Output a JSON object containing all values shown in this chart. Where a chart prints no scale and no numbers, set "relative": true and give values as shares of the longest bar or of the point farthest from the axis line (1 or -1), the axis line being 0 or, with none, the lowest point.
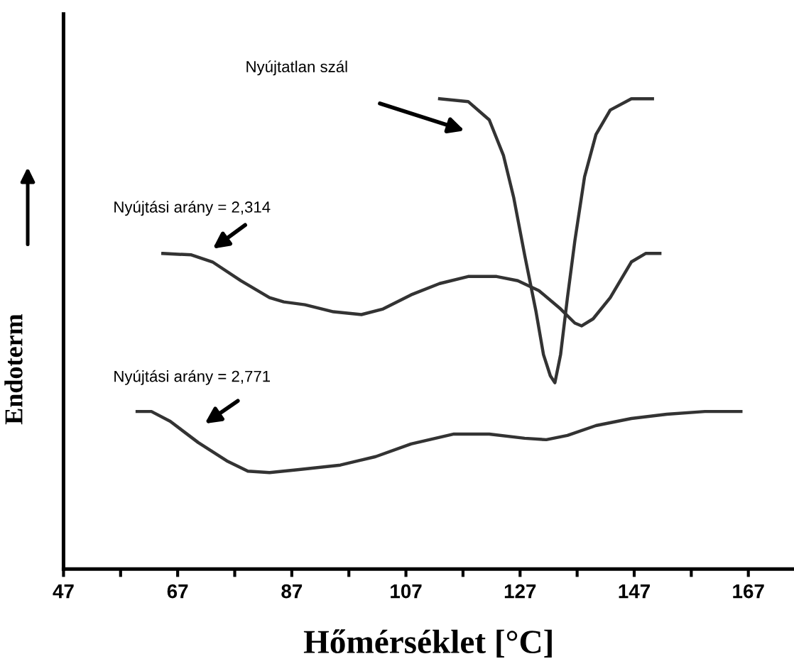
{
  "chart_data": {
    "type": "line",
    "relative": true,
    "xlabel": "Hőmérséklet [°C]",
    "ylabel": "Endoterm",
    "xlim": [
      47,
      175
    ],
    "xticks": [
      47,
      {
        "value": 57,
        "label": null
      },
      67,
      {
        "value": 77,
        "label": null
      },
      87,
      {
        "value": 97,
        "label": null
      },
      107,
      {
        "value": 117,
        "label": null
      },
      127,
      {
        "value": 137,
        "label": null
      },
      147,
      {
        "value": 157,
        "label": null
      },
      167
    ],
    "grid": false,
    "legend": false,
    "marker": "none",
    "line_style": "solid",
    "tick_labels": "x",
    "series": [
      {
        "color": "#333333",
        "x": [
          112.9,
          117.9,
          121.6,
          124.1,
          125.9,
          127.8,
          129.8,
          131.1,
          132.3,
          133.1,
          134.1,
          135.3,
          136.6,
          138.3,
          140.3,
          142.8,
          146.5,
          150.2
        ],
        "values": [
          1.0,
          0.994,
          0.955,
          0.879,
          0.789,
          0.668,
          0.547,
          0.456,
          0.411,
          0.396,
          0.456,
          0.577,
          0.698,
          0.834,
          0.924,
          0.976,
          1.0,
          1.0
        ]
      },
      {
        "color": "#333333",
        "x": [
          64.4,
          69.4,
          73.1,
          78.1,
          83.1,
          85.6,
          89.3,
          94.3,
          99.2,
          103.0,
          107.9,
          112.9,
          117.9,
          122.9,
          126.6,
          130.3,
          134.1,
          136.6,
          137.8,
          139.8,
          142.8,
          146.5,
          149.0,
          151.5
        ],
        "values": [
          0.671,
          0.668,
          0.653,
          0.613,
          0.577,
          0.568,
          0.562,
          0.547,
          0.541,
          0.553,
          0.583,
          0.607,
          0.622,
          0.622,
          0.613,
          0.592,
          0.553,
          0.523,
          0.517,
          0.532,
          0.577,
          0.653,
          0.671,
          0.671
        ]
      },
      {
        "color": "#333333",
        "x": [
          59.9,
          62.4,
          65.7,
          70.6,
          75.6,
          79.3,
          83.1,
          88.0,
          95.5,
          101.7,
          107.9,
          115.4,
          121.6,
          127.8,
          131.6,
          135.3,
          140.3,
          146.5,
          152.7,
          159.4,
          165.7
        ],
        "values": [
          0.335,
          0.335,
          0.314,
          0.269,
          0.23,
          0.208,
          0.205,
          0.211,
          0.221,
          0.239,
          0.266,
          0.287,
          0.287,
          0.278,
          0.275,
          0.284,
          0.305,
          0.32,
          0.329,
          0.335,
          0.335
        ]
      }
    ],
    "annotations": [
      "Nyújtatlan szál",
      "Nyújtási arány = 2,314",
      "Nyújtási arány = 2,771"
    ]
  }
}
